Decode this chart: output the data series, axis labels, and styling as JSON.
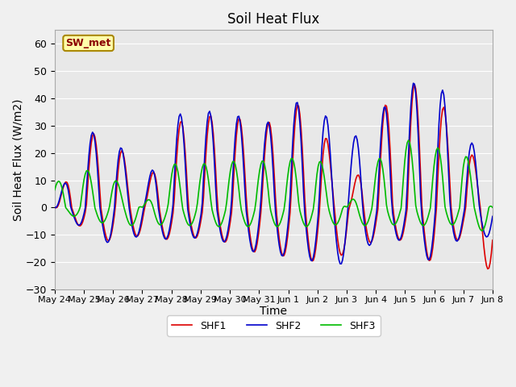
{
  "title": "Soil Heat Flux",
  "xlabel": "Time",
  "ylabel": "Soil Heat Flux (W/m2)",
  "ylim": [
    -30,
    65
  ],
  "yticks": [
    -30,
    -20,
    -10,
    0,
    10,
    20,
    30,
    40,
    50,
    60
  ],
  "line_colors": {
    "SHF1": "#dd0000",
    "SHF2": "#0000cc",
    "SHF3": "#00bb00"
  },
  "legend_labels": [
    "SHF1",
    "SHF2",
    "SHF3"
  ],
  "station_label": "SW_met",
  "plot_bg": "#e8e8e8",
  "fig_bg": "#f0f0f0",
  "grid_color": "#ffffff",
  "title_fontsize": 12,
  "axis_label_fontsize": 10,
  "tick_fontsize": 9
}
